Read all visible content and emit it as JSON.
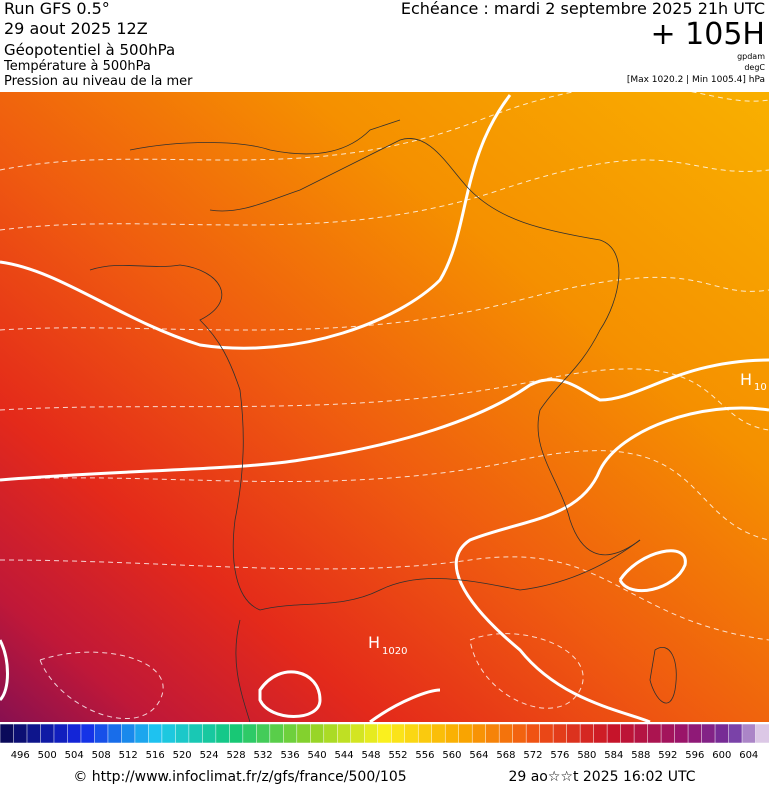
{
  "header": {
    "run": "Run GFS 0.5°",
    "date": "29 aout 2025 12Z",
    "field": "Géopotentiel à 500hPa",
    "field2": "Température à 500hPa",
    "field3": "Pression au niveau de la mer",
    "echeance": "Echéance : mardi 2 septembre 2025 21h UTC",
    "lead": "+ 105H",
    "unit1": "gpdam",
    "unit2": "degC",
    "range": "[Max 1020.2 | Min 1005.4] hPa"
  },
  "map": {
    "highs": [
      {
        "letter": "H",
        "value": "1020"
      },
      {
        "letter": "H",
        "value": "10"
      }
    ]
  },
  "colorbar": {
    "labels": [
      496,
      500,
      504,
      508,
      512,
      516,
      520,
      524,
      528,
      532,
      536,
      540,
      544,
      548,
      552,
      556,
      560,
      564,
      568,
      572,
      576,
      580,
      584,
      588,
      592,
      596,
      600,
      604
    ]
  },
  "footer": {
    "url": "© http://www.infoclimat.fr/z/gfs/france/500/105",
    "stamp": "29 ao☆☆t 2025 16:02 UTC"
  }
}
